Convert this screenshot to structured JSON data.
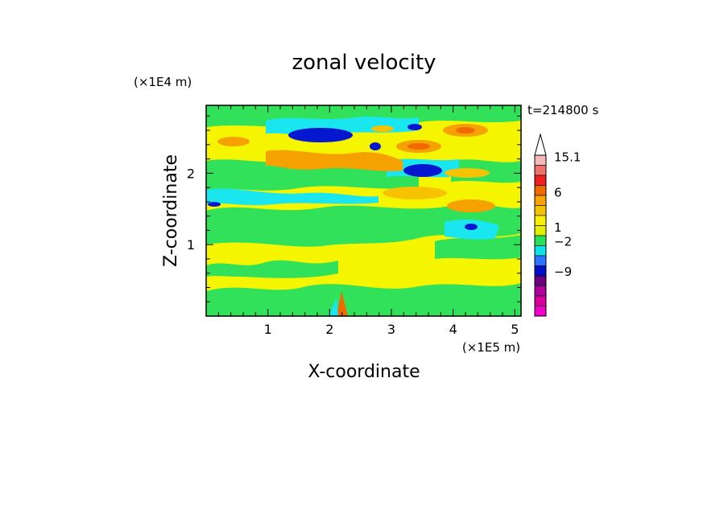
{
  "chart_data": {
    "type": "heatmap",
    "title": "zonal velocity",
    "xlabel": "X-coordinate",
    "ylabel": "Z-coordinate",
    "x_unit": "(×1E5 m)",
    "y_unit": "(×1E4 m)",
    "time_label": "t=214800 s",
    "xlim": [
      0,
      5.1
    ],
    "ylim": [
      0,
      2.95
    ],
    "x_ticks": [
      "1",
      "2",
      "3",
      "4",
      "5"
    ],
    "y_ticks": [
      "1",
      "2"
    ],
    "colorbar": {
      "labels": [
        "15.1",
        "6",
        "1",
        "−2",
        "−9"
      ],
      "colors": [
        "#f4b8b8",
        "#f07070",
        "#ee2020",
        "#f06a00",
        "#f7a300",
        "#f2c400",
        "#f6f000",
        "#e0f000",
        "#27e05a",
        "#10e0e8",
        "#2a74ff",
        "#0010c8",
        "#6a0080",
        "#b0009c",
        "#d8009c",
        "#f000c8"
      ]
    },
    "field_colors": {
      "yellow": "#f6f500",
      "green": "#32e15a",
      "cyan": "#1ae6f0",
      "blue": "#0518d0",
      "orange": "#f5a200",
      "light_orange": "#f7c300",
      "red": "#f06a00"
    }
  }
}
